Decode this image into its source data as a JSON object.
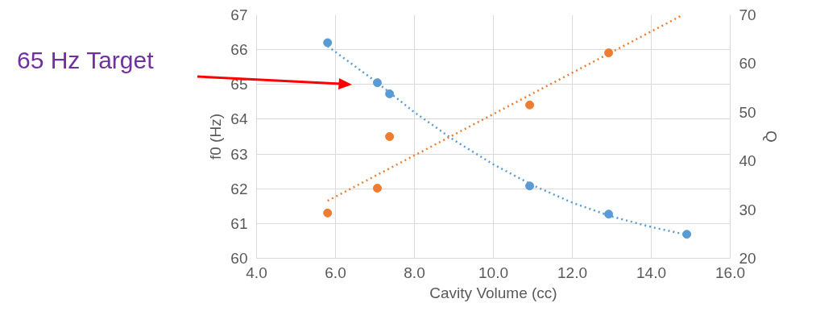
{
  "chart_data": {
    "type": "scatter",
    "xlabel": "Cavity Volume (cc)",
    "ylabel": "f0 (Hz)",
    "y2label": "Q",
    "xlim": [
      4,
      16
    ],
    "xticks": [
      {
        "value": 4,
        "label": "4.0"
      },
      {
        "value": 6,
        "label": "6.0"
      },
      {
        "value": 8,
        "label": "8.0"
      },
      {
        "value": 10,
        "label": "10.0"
      },
      {
        "value": 12,
        "label": "12.0"
      },
      {
        "value": 14,
        "label": "14.0"
      },
      {
        "value": 16,
        "label": "16.0"
      }
    ],
    "ylim": [
      60,
      67
    ],
    "yticks": [
      60,
      61,
      62,
      63,
      64,
      65,
      66,
      67
    ],
    "y2lim": [
      20,
      70
    ],
    "y2ticks": [
      20,
      30,
      40,
      50,
      60,
      70
    ],
    "grid": true,
    "marker": "circle",
    "series": [
      {
        "color": "#5b9bd5",
        "x": [
          5.8,
          7.06,
          7.37,
          10.92,
          12.92,
          14.9
        ],
        "values": [
          66.2,
          65.05,
          64.73,
          62.08,
          61.27,
          60.69
        ]
      },
      {
        "color": "#ed7d31",
        "axis": "y2",
        "x": [
          5.8,
          7.06,
          7.37,
          10.92,
          12.92
        ],
        "values": [
          29.3,
          34.4,
          45,
          51.5,
          62.2
        ]
      },
      {
        "type": "line",
        "line_style": "dotted",
        "marker": "none",
        "color": "#5b9bd5",
        "x": [
          5.8,
          7,
          8,
          9,
          10,
          11,
          12,
          13,
          14,
          15
        ],
        "values": [
          66.1,
          65.1,
          64.2,
          63.4,
          62.7,
          62.1,
          61.6,
          61.2,
          60.9,
          60.65
        ]
      },
      {
        "type": "line",
        "line_style": "dotted",
        "marker": "none",
        "color": "#ed7d31",
        "axis": "y2",
        "x": [
          5.8,
          14.8
        ],
        "values": [
          31.8,
          70
        ]
      }
    ],
    "annotations": [
      "65 Hz Target"
    ]
  }
}
